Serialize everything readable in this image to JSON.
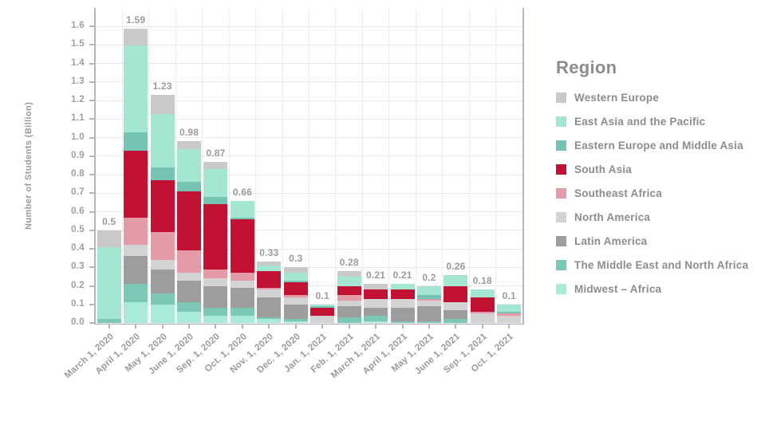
{
  "y_axis": {
    "title": "Number of Students (Billion)",
    "tick_labels": [
      "0.0",
      "0.1",
      "0.2",
      "0.3",
      "0.4",
      "0.5",
      "0.6",
      "0.7",
      "0.8",
      "0.9",
      "1.0",
      "1.1",
      "1.2",
      "1.3",
      "1.4",
      "1.5",
      "1.6"
    ]
  },
  "legend": {
    "title": "Region"
  },
  "chart_data": {
    "type": "bar",
    "stacked": true,
    "title": "",
    "xlabel": "",
    "ylabel": "Number of Students (Billion)",
    "ylim": [
      0,
      1.7
    ],
    "ytick_step": 0.1,
    "grid": true,
    "legend_position": "right",
    "legend_title": "Region",
    "stack_order": "first listed series renders on top of each bar",
    "categories": [
      "March 1, 2020",
      "April 1, 2020",
      "May 1, 2020",
      "June 1, 2020",
      "Sep. 1, 2020",
      "Oct. 1, 2020",
      "Nov. 1, 2020",
      "Dec. 1, 2020",
      "Jan. 1, 2021",
      "Feb. 1, 2021",
      "March 1, 2021",
      "April 1, 2021",
      "May 1, 2021",
      "June 1, 2021",
      "Sep. 1, 2021",
      "Oct. 1, 2021"
    ],
    "bar_total_labels": [
      "0.5",
      "1.59",
      "1.23",
      "0.98",
      "0.87",
      "0.66",
      "0.33",
      "0.3",
      "0.1",
      "0.28",
      "0.21",
      "0.21",
      "0.2",
      "0.26",
      "0.18",
      "0.1"
    ],
    "series": [
      {
        "name": "Western Europe",
        "color": "#c9c9c9",
        "values": [
          0.09,
          0.09,
          0.1,
          0.04,
          0.04,
          0,
          0.02,
          0.03,
          0,
          0.03,
          0.03,
          0,
          0,
          0,
          0,
          0
        ]
      },
      {
        "name": "East Asia and the Pacific",
        "color": "#a3e6d2",
        "values": [
          0.39,
          0.47,
          0.29,
          0.18,
          0.15,
          0.09,
          0.03,
          0.04,
          0.01,
          0.05,
          0,
          0.03,
          0.05,
          0.06,
          0.04,
          0.04
        ]
      },
      {
        "name": "Eastern Europe and Middle Asia",
        "color": "#75c3b2",
        "values": [
          0,
          0.1,
          0.07,
          0.05,
          0.04,
          0.01,
          0,
          0.01,
          0.01,
          0,
          0,
          0,
          0.02,
          0,
          0,
          0.01
        ]
      },
      {
        "name": "South Asia",
        "color": "#c21132",
        "values": [
          0,
          0.36,
          0.28,
          0.32,
          0.35,
          0.29,
          0.09,
          0.07,
          0.04,
          0.05,
          0.05,
          0.05,
          0,
          0.09,
          0.08,
          0
        ]
      },
      {
        "name": "Southeast Africa",
        "color": "#e59aa8",
        "values": [
          0,
          0.15,
          0.15,
          0.12,
          0.05,
          0.04,
          0.01,
          0.01,
          0,
          0.03,
          0,
          0,
          0.01,
          0,
          0.01,
          0.01
        ]
      },
      {
        "name": "North America",
        "color": "#d3d3d3",
        "values": [
          0,
          0.06,
          0.05,
          0.04,
          0.04,
          0.04,
          0.04,
          0.04,
          0.04,
          0.03,
          0.05,
          0.05,
          0.03,
          0.04,
          0.05,
          0.04
        ]
      },
      {
        "name": "Latin America",
        "color": "#9d9d9d",
        "values": [
          0,
          0.15,
          0.13,
          0.12,
          0.12,
          0.11,
          0.11,
          0.08,
          0,
          0.06,
          0.04,
          0.07,
          0.08,
          0.05,
          0,
          0
        ]
      },
      {
        "name": "The Middle East and North Africa",
        "color": "#7bc8b6",
        "values": [
          0.02,
          0.1,
          0.06,
          0.05,
          0.04,
          0.04,
          0.01,
          0.01,
          0,
          0.03,
          0.03,
          0.01,
          0.01,
          0.02,
          0,
          0
        ]
      },
      {
        "name": "Midwest – Africa",
        "color": "#a9ebd9",
        "values": [
          0,
          0.11,
          0.1,
          0.06,
          0.04,
          0.04,
          0.02,
          0.01,
          0,
          0,
          0.01,
          0,
          0,
          0,
          0,
          0
        ]
      }
    ],
    "colors": {
      "axis_spine": "#b6b3c2",
      "gridline": "#e9e9e9",
      "axis_text": "#9b9b9b",
      "legend_text": "#8d8d8d"
    }
  }
}
